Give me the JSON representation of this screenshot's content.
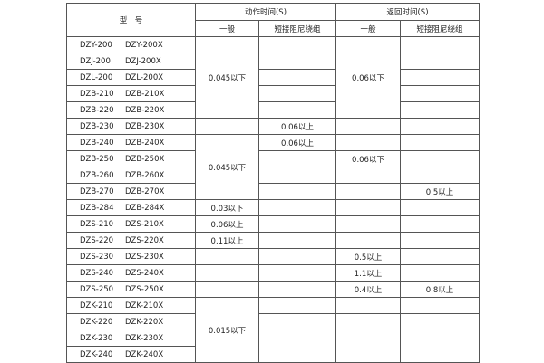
{
  "header": {
    "model": "型　号",
    "action_time": "动作时间(S)",
    "return_time": "返回时间(S)",
    "general": "一般",
    "short_winding": "短接阻尼绕组"
  },
  "rows": [
    {
      "model": [
        "DZY-200",
        "DZY-200X"
      ],
      "action_general": "0.045以下",
      "action_short": "",
      "return_general": "0.06以下",
      "return_short": ""
    },
    {
      "model": [
        "DZJ-200",
        "DZJ-200X"
      ],
      "action_short": "",
      "return_short": ""
    },
    {
      "model": [
        "DZL-200",
        "DZL-200X"
      ],
      "action_short": "",
      "return_short": ""
    },
    {
      "model": [
        "DZB-210",
        "DZB-210X"
      ],
      "action_short": "",
      "return_short": ""
    },
    {
      "model": [
        "DZB-220",
        "DZB-220X"
      ],
      "action_short": "",
      "return_short": ""
    },
    {
      "model": [
        "DZB-230",
        "DZB-230X"
      ],
      "action_general": "",
      "action_short": "0.06以上",
      "return_general": "",
      "return_short": ""
    },
    {
      "model": [
        "DZB-240",
        "DZB-240X"
      ],
      "action_general": "0.045以下",
      "action_short": "0.06以上",
      "return_general": "",
      "return_short": ""
    },
    {
      "model": [
        "DZB-250",
        "DZB-250X"
      ],
      "action_short": "",
      "return_general": "0.06以下",
      "return_short": ""
    },
    {
      "model": [
        "DZB-260",
        "DZB-260X"
      ],
      "action_short": "",
      "return_general": "",
      "return_short": ""
    },
    {
      "model": [
        "DZB-270",
        "DZB-270X"
      ],
      "action_short": "",
      "return_general": "",
      "return_short": "0.5以上"
    },
    {
      "model": [
        "DZB-284",
        "DZB-284X"
      ],
      "action_general": "0.03以下",
      "action_short": "",
      "return_general": "",
      "return_short": ""
    },
    {
      "model": [
        "DZS-210",
        "DZS-210X"
      ],
      "action_general": "0.06以上",
      "action_short": "",
      "return_general": "",
      "return_short": ""
    },
    {
      "model": [
        "DZS-220",
        "DZS-220X"
      ],
      "action_general": "0.11以上",
      "action_short": "",
      "return_general": "",
      "return_short": ""
    },
    {
      "model": [
        "DZS-230",
        "DZS-230X"
      ],
      "action_general": "",
      "action_short": "",
      "return_general": "0.5以上",
      "return_short": ""
    },
    {
      "model": [
        "DZS-240",
        "DZS-240X"
      ],
      "action_general": "",
      "action_short": "",
      "return_general": "1.1以上",
      "return_short": ""
    },
    {
      "model": [
        "DZS-250",
        "DZS-250X"
      ],
      "action_general": "",
      "action_short": "",
      "return_general": "0.4以上",
      "return_short": "0.8以上"
    },
    {
      "model": [
        "DZK-210",
        "DZK-210X"
      ],
      "action_general": "0.015以下",
      "action_short": "",
      "return_general": "",
      "return_short": ""
    },
    {
      "model": [
        "DZK-220",
        "DZK-220X"
      ],
      "action_short": "",
      "return_general": "",
      "return_short": ""
    },
    {
      "model": [
        "DZK-230",
        "DZK-230X"
      ]
    },
    {
      "model": [
        "DZK-240",
        "DZK-240X"
      ]
    }
  ]
}
